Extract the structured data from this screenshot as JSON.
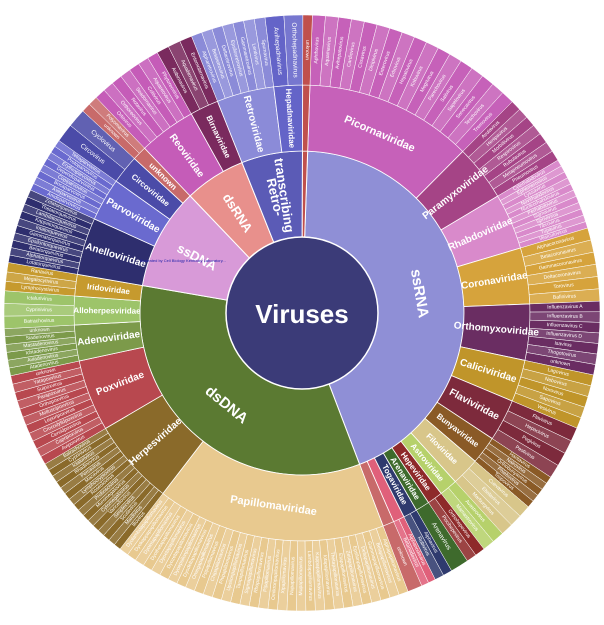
{
  "chart_data": {
    "type": "sunburst",
    "title": "",
    "center": {
      "label": "Viruses",
      "color": "#3b3b78"
    },
    "groups": [
      {
        "name": "ssRNA",
        "value": 43,
        "color": "#8f8fd6",
        "families": [
          {
            "name": "Picornaviridae",
            "value": 12,
            "color": "#c661b9",
            "genera": [
              "Aphthovirus",
              "Aquamavirus",
              "Avihepatovirus",
              "Cardiovirus",
              "Cosavirus",
              "Dicipivirus",
              "Enterovirus",
              "Erbovirus",
              "Hepatovirus",
              "Kobuvirus",
              "Megrivirus",
              "Parechovirus",
              "Salivirus",
              "Sapelovirus",
              "Senecavirus",
              "Teschovirus",
              "Tremovirus"
            ]
          },
          {
            "name": "Paramyxoviridae",
            "value": 4,
            "color": "#a54486",
            "genera": [
              "Avulavirus",
              "Henipavirus",
              "Morbillivirus",
              "Respirovirus",
              "Rubulavirus",
              "Metapneumovirus",
              "Pneumovirus"
            ]
          },
          {
            "name": "Rhabdoviridae",
            "value": 4,
            "color": "#d98acb",
            "genera": [
              "Cytorhabdovirus",
              "Ephemerovirus",
              "Lyssavirus",
              "Novirhabdovirus",
              "Nucleorhabdovirus",
              "Perhabdovirus",
              "Sigmavirus",
              "Sprivivirus",
              "Tibrovirus",
              "Tupavirus",
              "Vesiculovirus"
            ]
          },
          {
            "name": "Coronaviridae",
            "value": 4,
            "color": "#d6a33c",
            "genera": [
              "Alphacoronavirus",
              "Betacoronavirus",
              "Gammacoronavirus",
              "Deltacoronavirus",
              "Torovirus",
              "Bafinivirus"
            ]
          },
          {
            "name": "Orthomyxoviridae",
            "value": 4,
            "color": "#6a2d62",
            "genera": [
              "Influenzavirus A",
              "Influenzavirus B",
              "Influenzavirus C",
              "Influenzavirus D",
              "Isavirus",
              "Thogotovirus",
              "unknown"
            ]
          },
          {
            "name": "Caliciviridae",
            "value": 3,
            "color": "#c0952a",
            "genera": [
              "Lagovirus",
              "Nebovirus",
              "Norovirus",
              "Sapovirus",
              "Vesivirus"
            ]
          },
          {
            "name": "Flaviviridae",
            "value": 3,
            "color": "#7d2a3c",
            "genera": [
              "Flavivirus",
              "Hepacivirus",
              "Pegivirus",
              "Pestivirus"
            ]
          },
          {
            "name": "Bunyaviridae",
            "value": 2,
            "color": "#8a5a26",
            "genera": [
              "Hantavirus",
              "Nairovirus",
              "Orthobunyavirus",
              "Phlebovirus",
              "Tospovirus"
            ]
          },
          {
            "name": "Filoviridae",
            "value": 2,
            "color": "#d8c68a",
            "genera": [
              "Cuevavirus",
              "Ebolavirus",
              "Marburgvirus"
            ]
          },
          {
            "name": "Astroviridae",
            "value": 1.3,
            "color": "#b6d16b",
            "genera": [
              "Avastrovirus",
              "Mamastrovirus"
            ]
          },
          {
            "name": "Hepeviridae",
            "value": 1.1,
            "color": "#8e2a2a",
            "genera": [
              "Orthohepevirus",
              "Piscihepevirus"
            ]
          },
          {
            "name": "Arenaviridae",
            "value": 1,
            "color": "#3e6a2c",
            "genera": [
              "Arenavirus"
            ]
          },
          {
            "name": "Togaviridae",
            "value": 1,
            "color": "#2f3a6e",
            "genera": [
              "Alphavirus",
              "Rubivirus"
            ]
          },
          {
            "name": "Nodaviridae",
            "value": 0.8,
            "color": "#e0607a",
            "genera": [
              "Alphanodavirus",
              "Betanodavirus"
            ]
          },
          {
            "name": "unknown",
            "value": 0.8,
            "color": "#c86a6a",
            "genera": [
              "unknown"
            ]
          }
        ]
      },
      {
        "name": "dsDNA",
        "value": 33,
        "color": "#5b7a32",
        "families": [
          {
            "name": "Papillomaviridae",
            "value": 16,
            "color": "#e8c98f",
            "genera": [
              "Alphapapillomavirus",
              "Betapapillomavirus",
              "Gammapapillomavirus",
              "Deltapapillomavirus",
              "Epsilonpapillomavirus",
              "Zetapapillomavirus",
              "Etapapillomavirus",
              "Thetapapillomavirus",
              "Iotapapillomavirus",
              "Kappapapillomavirus",
              "Lambdapapillomavirus",
              "Mupapillomavirus",
              "Nupapillomavirus",
              "Xipapillomavirus",
              "Omikronpapillomavirus",
              "Pipapillomavirus",
              "Rhopapillomavirus",
              "Sigmapapillomavirus",
              "Taupapillomavirus",
              "Upsilonpapillomavirus",
              "Phipapillomavirus",
              "Chipapillomavirus",
              "Psipapillomavirus",
              "Omegapapillomavirus",
              "Dyodeltapapillomavirus",
              "Dyoepsilonpapillomavirus",
              "Dyozetapapillomavirus",
              "Dyoetapapillomavirus",
              "Dyothetapapillomavirus",
              "Dyoiotapapillomavirus",
              "Dyokappapapillomavirus",
              "Dyolambdapapillomavirus"
            ]
          },
          {
            "name": "Herpesviridae",
            "value": 6,
            "color": "#8a6a2a",
            "genera": [
              "Iltovirus",
              "Mardivirus",
              "Scutavirus",
              "Simplexvirus",
              "Varicellovirus",
              "Cytomegalovirus",
              "Muromegalovirus",
              "Proboscivirus",
              "Roseolovirus",
              "Lymphocryptovirus",
              "Macavirus",
              "Percavirus",
              "Rhadinovirus",
              "Ictalurivirus",
              "Cyprinivirus",
              "Batrachovirus"
            ]
          },
          {
            "name": "Poxviridae",
            "value": 5,
            "color": "#b8484f",
            "genera": [
              "Avipoxvirus",
              "Capripoxvirus",
              "Cervidpoxvirus",
              "Crocodylidpoxvirus",
              "Leporipoxvirus",
              "Molluscipoxvirus",
              "Orthopoxvirus",
              "Parapoxvirus",
              "Suipoxvirus",
              "Yatapoxvirus",
              "unknown"
            ]
          },
          {
            "name": "Adenoviridae",
            "value": 2.5,
            "color": "#7c9a4a",
            "genera": [
              "Atadenovirus",
              "Aviadenovirus",
              "Ichtadenovirus",
              "Mastadenovirus",
              "Siadenovirus",
              "unknown"
            ]
          },
          {
            "name": "Alloherpesviridae",
            "value": 2,
            "color": "#9dc46a",
            "genera": [
              "Batrachovirus",
              "Cyprinivirus",
              "Ictalurivirus"
            ]
          },
          {
            "name": "Iridoviridae",
            "value": 1.5,
            "color": "#c69a2e",
            "genera": [
              "Lymphocystivirus",
              "Megalocytivirus",
              "Ranavirus"
            ]
          }
        ]
      },
      {
        "name": "ssDNA",
        "value": 10,
        "color": "#d89ad8",
        "families": [
          {
            "name": "Anelloviridae",
            "value": 4,
            "color": "#2e2e6e",
            "genera": [
              "Lotatorquevirus",
              "Alphatorquevirus",
              "Betatorquevirus",
              "Epsilontorquevirus",
              "Gammatorquevirus",
              "Iotatorquevirus",
              "Kappatorquevirus",
              "Lambdatorquevirus",
              "Thetatorquevirus",
              "Zetatorquevirus"
            ]
          },
          {
            "name": "Parvoviridae",
            "value": 3,
            "color": "#6a6acf",
            "genera": [
              "Amdoparvovirus",
              "Aveparvovirus",
              "Bocaparvovirus",
              "Copiparvovirus",
              "Dependoparvovirus",
              "Erythroparvovirus",
              "Protoparvovirus",
              "Tetraparvovirus"
            ]
          },
          {
            "name": "Circoviridae",
            "value": 2,
            "color": "#4b4ba8",
            "genera": [
              "Circovirus",
              "Cyclovirus"
            ]
          },
          {
            "name": "unknown",
            "value": 1,
            "color": "#c86a6a",
            "genera": [
              "unknown",
              "Polyomavirus"
            ]
          }
        ]
      },
      {
        "name": "dsRNA",
        "value": 6,
        "color": "#e8908c",
        "families": [
          {
            "name": "Reoviridae",
            "value": 4,
            "color": "#c55cb8",
            "genera": [
              "Orbivirus",
              "Orthoreovirus",
              "Rotavirus",
              "Seadornavirus",
              "Coltivirus",
              "Aquareovirus",
              "Phytoreovirus"
            ]
          },
          {
            "name": "Birnaviridae",
            "value": 2,
            "color": "#7a2a5e",
            "genera": [
              "Avibirnavirus",
              "Aquabirnavirus",
              "Entomobirnavirus"
            ]
          }
        ]
      },
      {
        "name": "Retro-\ntranscribing",
        "value": 6,
        "color": "#5b5bb6",
        "families": [
          {
            "name": "Retroviridae",
            "value": 4,
            "color": "#8b8bd8",
            "genera": [
              "Alpharetrovirus",
              "Betaretrovirus",
              "Deltaretrovirus",
              "Epsilonretrovirus",
              "Gammaretrovirus",
              "Lentivirus",
              "Spumavirus"
            ]
          },
          {
            "name": "Hepadnaviridae",
            "value": 2,
            "color": "#6464c8",
            "genera": [
              "Avihepadnavirus",
              "Orthohepadnavirus"
            ]
          }
        ]
      },
      {
        "name": "",
        "value": 0.5,
        "color": "#c0504d",
        "families": [
          {
            "name": "",
            "value": 0.5,
            "color": "#c0504d",
            "genera": [
              "unknown"
            ]
          }
        ]
      }
    ]
  },
  "attribution": "Illustrated by Cell Biology Kentucky Laboratory..."
}
